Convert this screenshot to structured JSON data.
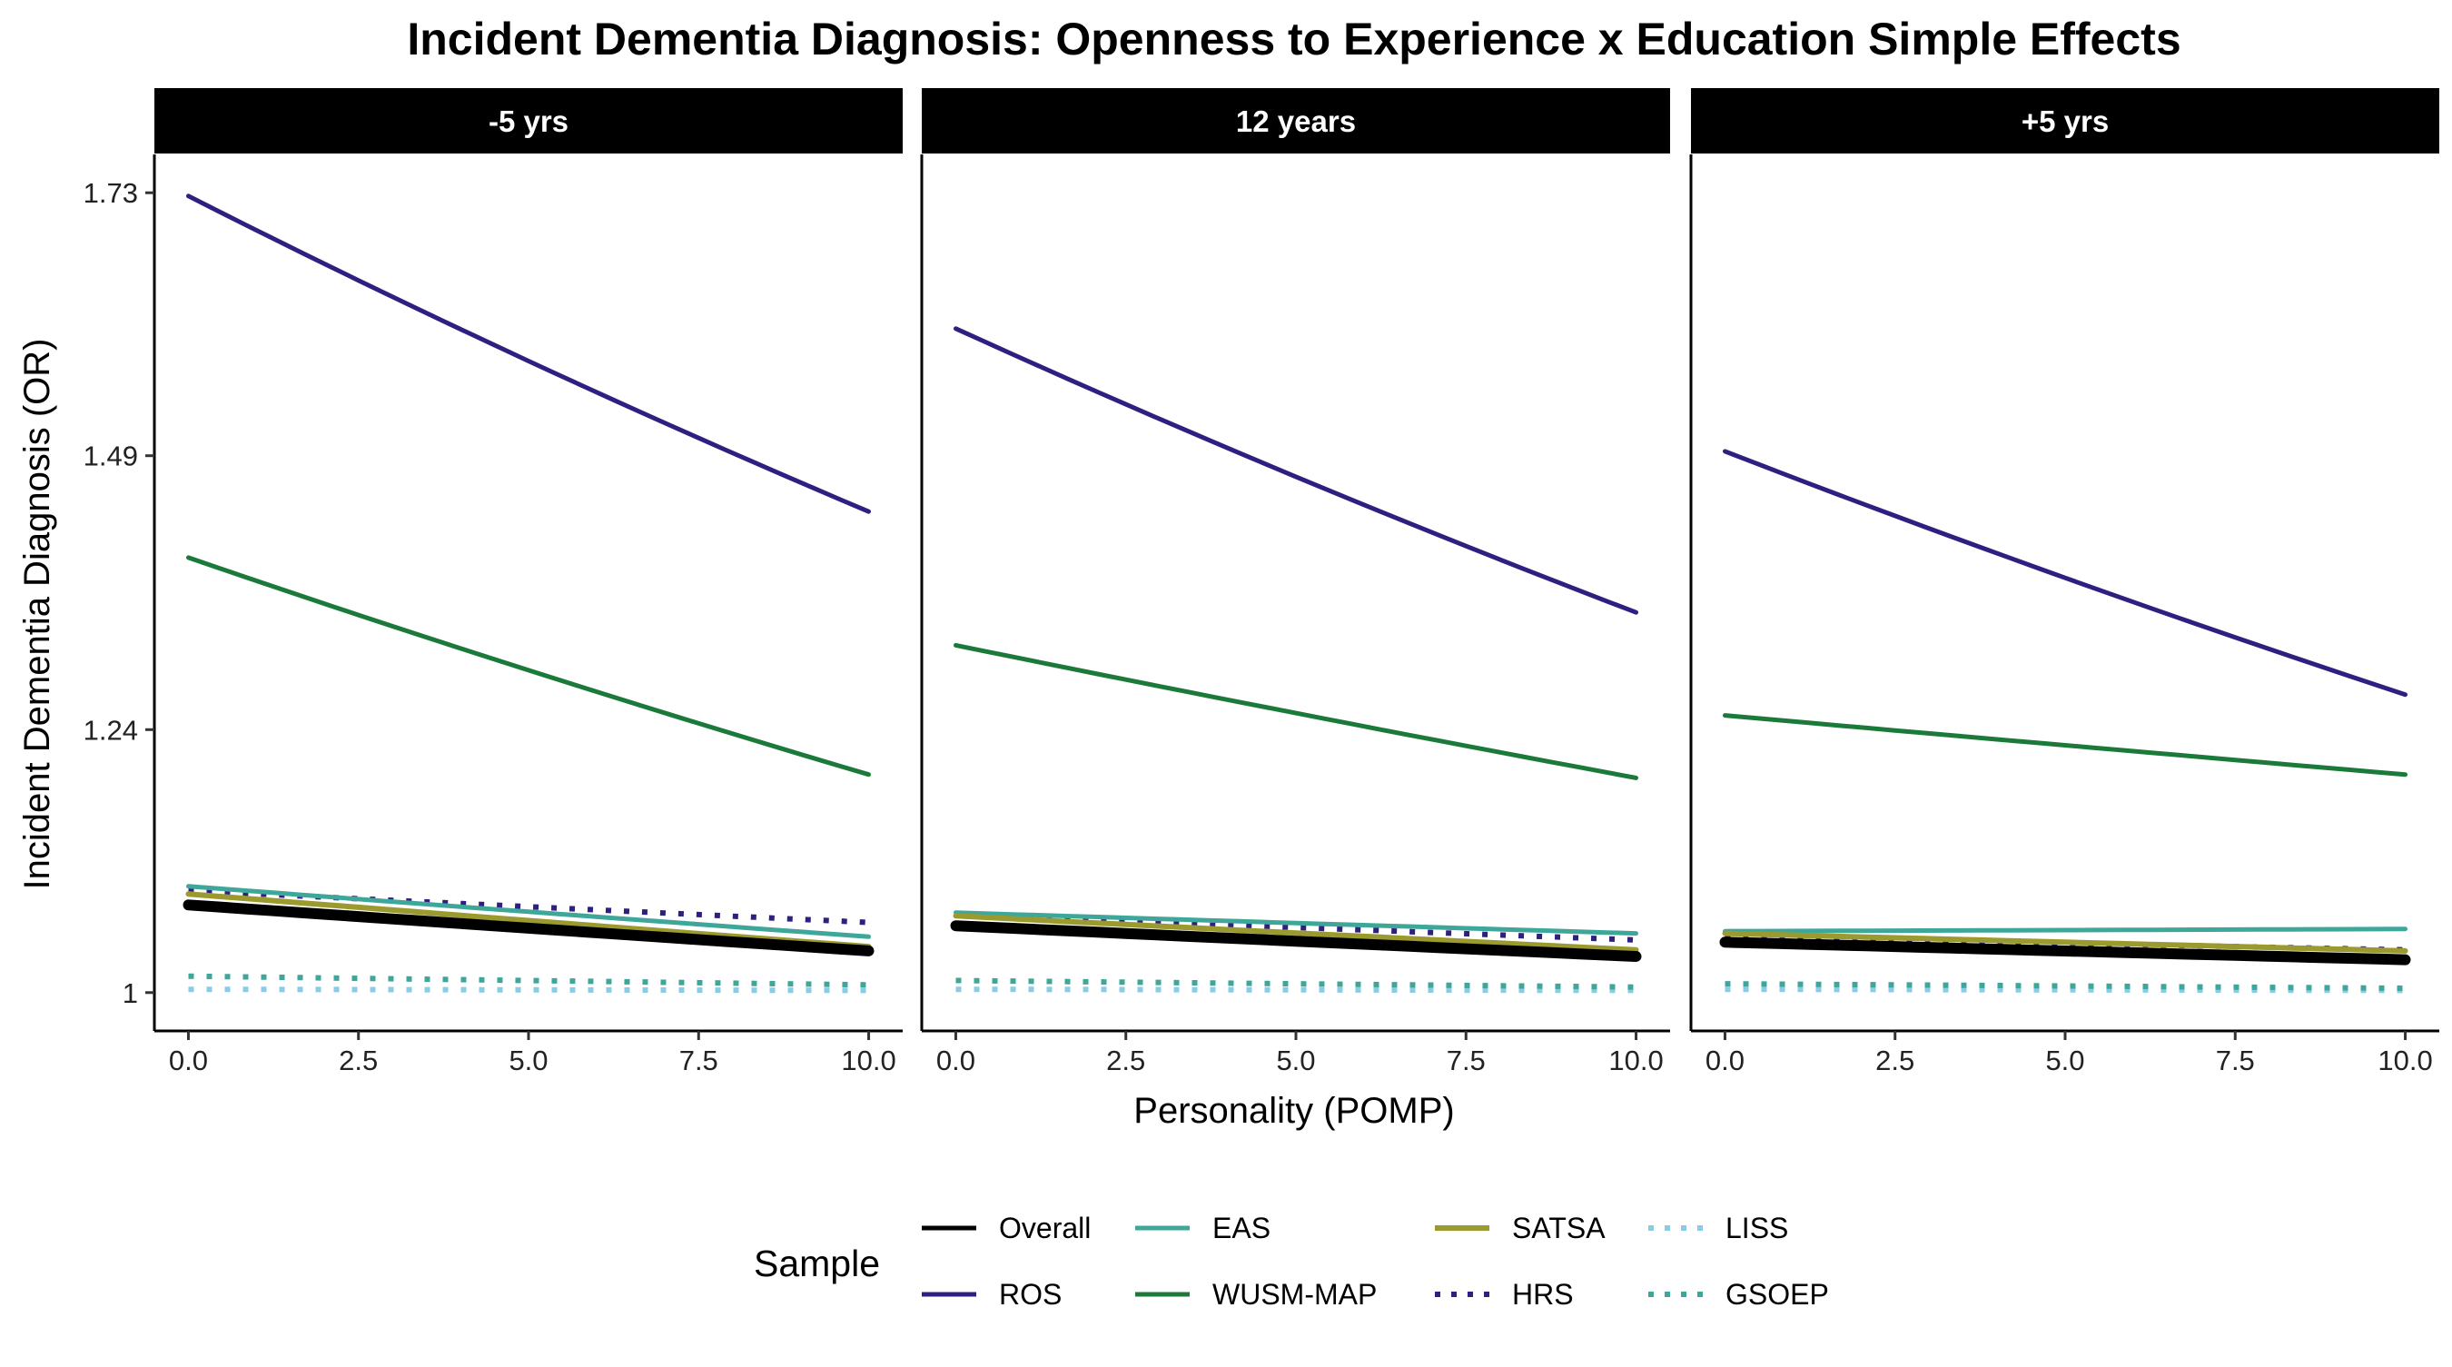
{
  "chart_data": {
    "type": "line",
    "title": "Incident Dementia Diagnosis: Openness to Experience x Education Simple Effects",
    "xlabel": "Personality (POMP)",
    "ylabel": "Incident Dementia Diagnosis (OR)",
    "x": [
      0,
      10
    ],
    "xlim": [
      -0.5,
      10.5
    ],
    "ylim": [
      0.965,
      1.765
    ],
    "x_ticks": [
      0,
      2.5,
      5,
      7.5,
      10
    ],
    "x_tick_labels": [
      "0.0",
      "2.5",
      "5.0",
      "7.5",
      "10.0"
    ],
    "y_ticks": [
      1,
      1.24,
      1.49,
      1.73
    ],
    "y_tick_labels": [
      "1",
      "1.24",
      "1.49",
      "1.73"
    ],
    "grid": false,
    "legend": {
      "title": "Sample",
      "placement": "bottom",
      "entries": [
        "Overall",
        "ROS",
        "EAS",
        "WUSM-MAP",
        "SATSA",
        "HRS",
        "LISS",
        "GSOEP"
      ]
    },
    "series_styles": {
      "Overall": {
        "color": "#000000",
        "dash": "solid"
      },
      "ROS": {
        "color": "#2e1f80",
        "dash": "solid"
      },
      "EAS": {
        "color": "#3fa79a",
        "dash": "solid"
      },
      "WUSM-MAP": {
        "color": "#1b7a3a",
        "dash": "solid"
      },
      "SATSA": {
        "color": "#9a9a2e",
        "dash": "solid"
      },
      "HRS": {
        "color": "#2e1f80",
        "dash": "dotted"
      },
      "LISS": {
        "color": "#88cce6",
        "dash": "dotted"
      },
      "GSOEP": {
        "color": "#3fa79a",
        "dash": "dotted"
      }
    },
    "panels": [
      {
        "label": "-5 yrs",
        "series": [
          {
            "name": "LISS",
            "values": [
              1.003,
              1.002
            ]
          },
          {
            "name": "GSOEP",
            "values": [
              1.015,
              1.007
            ]
          },
          {
            "name": "HRS",
            "values": [
              1.093,
              1.064
            ]
          },
          {
            "name": "EAS",
            "values": [
              1.097,
              1.051
            ]
          },
          {
            "name": "SATSA",
            "values": [
              1.09,
              1.042
            ]
          },
          {
            "name": "Overall",
            "values": [
              1.08,
              1.038
            ]
          },
          {
            "name": "WUSM-MAP",
            "values": [
              1.397,
              1.199
            ]
          },
          {
            "name": "ROS",
            "values": [
              1.727,
              1.439
            ]
          }
        ]
      },
      {
        "label": "12 years",
        "series": [
          {
            "name": "LISS",
            "values": [
              1.003,
              1.002
            ]
          },
          {
            "name": "GSOEP",
            "values": [
              1.011,
              1.005
            ]
          },
          {
            "name": "HRS",
            "values": [
              1.071,
              1.048
            ]
          },
          {
            "name": "EAS",
            "values": [
              1.073,
              1.054
            ]
          },
          {
            "name": "SATSA",
            "values": [
              1.07,
              1.039
            ]
          },
          {
            "name": "Overall",
            "values": [
              1.061,
              1.033
            ]
          },
          {
            "name": "WUSM-MAP",
            "values": [
              1.317,
              1.196
            ]
          },
          {
            "name": "ROS",
            "values": [
              1.606,
              1.347
            ]
          }
        ]
      },
      {
        "label": "+5 yrs",
        "series": [
          {
            "name": "LISS",
            "values": [
              1.003,
              1.002
            ]
          },
          {
            "name": "GSOEP",
            "values": [
              1.008,
              1.004
            ]
          },
          {
            "name": "HRS",
            "values": [
              1.051,
              1.039
            ]
          },
          {
            "name": "EAS",
            "values": [
              1.056,
              1.058
            ]
          },
          {
            "name": "SATSA",
            "values": [
              1.054,
              1.038
            ]
          },
          {
            "name": "Overall",
            "values": [
              1.046,
              1.03
            ]
          },
          {
            "name": "WUSM-MAP",
            "values": [
              1.253,
              1.199
            ]
          },
          {
            "name": "ROS",
            "values": [
              1.494,
              1.272
            ]
          }
        ]
      }
    ]
  }
}
